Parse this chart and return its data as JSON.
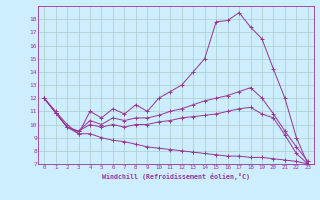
{
  "xlabel": "Windchill (Refroidissement éolien,°C)",
  "background_color": "#cceeff",
  "grid_color": "#aacccc",
  "line_color": "#993399",
  "xlim": [
    -0.5,
    23.5
  ],
  "ylim": [
    7,
    19
  ],
  "yticks": [
    7,
    8,
    9,
    10,
    11,
    12,
    13,
    14,
    15,
    16,
    17,
    18
  ],
  "xticks": [
    0,
    1,
    2,
    3,
    4,
    5,
    6,
    7,
    8,
    9,
    10,
    11,
    12,
    13,
    14,
    15,
    16,
    17,
    18,
    19,
    20,
    21,
    22,
    23
  ],
  "series": [
    {
      "x": [
        0,
        1,
        2,
        3,
        4,
        5,
        6,
        7,
        8,
        9,
        10,
        11,
        12,
        13,
        14,
        15,
        16,
        17,
        18,
        19,
        20,
        21,
        22,
        23
      ],
      "y": [
        12,
        11,
        10,
        9.3,
        11,
        10.5,
        11.2,
        10.8,
        11.5,
        11,
        12,
        12.5,
        13,
        14,
        15,
        17.8,
        17.9,
        18.5,
        17.4,
        16.5,
        14.2,
        12,
        9,
        7
      ]
    },
    {
      "x": [
        0,
        1,
        2,
        3,
        4,
        5,
        6,
        7,
        8,
        9,
        10,
        11,
        12,
        13,
        14,
        15,
        16,
        17,
        18,
        19,
        20,
        21,
        22,
        23
      ],
      "y": [
        12,
        10.9,
        9.8,
        9.5,
        10.3,
        10.0,
        10.5,
        10.3,
        10.5,
        10.5,
        10.7,
        11.0,
        11.2,
        11.5,
        11.8,
        12.0,
        12.2,
        12.5,
        12.8,
        12.0,
        10.8,
        9.5,
        8.3,
        7.2
      ]
    },
    {
      "x": [
        0,
        1,
        2,
        3,
        4,
        5,
        6,
        7,
        8,
        9,
        10,
        11,
        12,
        13,
        14,
        15,
        16,
        17,
        18,
        19,
        20,
        21,
        22,
        23
      ],
      "y": [
        12,
        10.9,
        9.8,
        9.5,
        10.0,
        9.8,
        10.0,
        9.8,
        10.0,
        10.0,
        10.2,
        10.3,
        10.5,
        10.6,
        10.7,
        10.8,
        11.0,
        11.2,
        11.3,
        10.8,
        10.5,
        9.2,
        7.8,
        7.0
      ]
    },
    {
      "x": [
        0,
        1,
        2,
        3,
        4,
        5,
        6,
        7,
        8,
        9,
        10,
        11,
        12,
        13,
        14,
        15,
        16,
        17,
        18,
        19,
        20,
        21,
        22,
        23
      ],
      "y": [
        12,
        10.9,
        9.8,
        9.3,
        9.3,
        9.0,
        8.8,
        8.7,
        8.5,
        8.3,
        8.2,
        8.1,
        8.0,
        7.9,
        7.8,
        7.7,
        7.6,
        7.6,
        7.5,
        7.5,
        7.4,
        7.3,
        7.2,
        7.0
      ]
    }
  ]
}
